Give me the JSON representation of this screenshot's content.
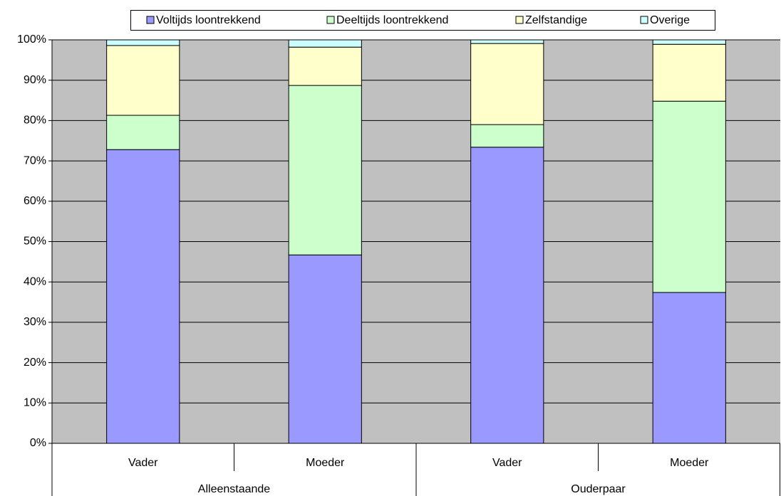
{
  "chart_data": {
    "type": "stacked_bar",
    "groups": [
      {
        "name": "Alleenstaande",
        "categories": [
          "Vader",
          "Moeder"
        ]
      },
      {
        "name": "Ouderpaar",
        "categories": [
          "Vader",
          "Moeder"
        ]
      }
    ],
    "series": [
      {
        "name": "Voltijds loontrekkend",
        "color": "#9999ff",
        "values": [
          72.8,
          46.7,
          73.4,
          37.4
        ]
      },
      {
        "name": "Deeltijds loontrekkend",
        "color": "#ccffcc",
        "values": [
          8.5,
          42.0,
          5.6,
          47.4
        ]
      },
      {
        "name": "Zelfstandige",
        "color": "#ffffcc",
        "values": [
          17.3,
          9.5,
          20.1,
          14.1
        ]
      },
      {
        "name": "Overige",
        "color": "#ccffff",
        "values": [
          1.4,
          1.8,
          0.9,
          1.1
        ]
      }
    ],
    "ylim": [
      0,
      100
    ],
    "yticks": [
      {
        "value": 0,
        "label": "0%"
      },
      {
        "value": 10,
        "label": "10%"
      },
      {
        "value": 20,
        "label": "20%"
      },
      {
        "value": 30,
        "label": "30%"
      },
      {
        "value": 40,
        "label": "40%"
      },
      {
        "value": 50,
        "label": "50%"
      },
      {
        "value": 60,
        "label": "60%"
      },
      {
        "value": 70,
        "label": "70%"
      },
      {
        "value": 80,
        "label": "80%"
      },
      {
        "value": 90,
        "label": "90%"
      },
      {
        "value": 100,
        "label": "100%"
      }
    ],
    "grid": true,
    "legend": "top"
  }
}
